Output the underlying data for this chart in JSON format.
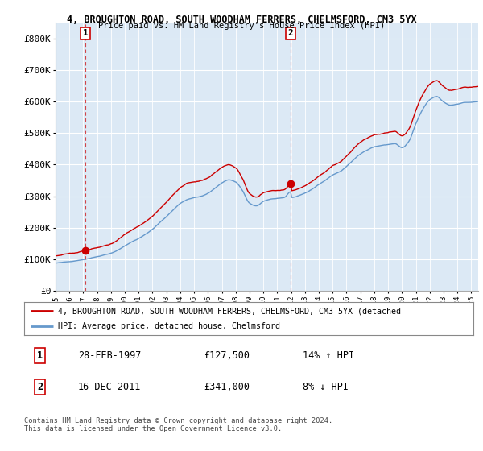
{
  "title1": "4, BROUGHTON ROAD, SOUTH WOODHAM FERRERS, CHELMSFORD, CM3 5YX",
  "title2": "Price paid vs. HM Land Registry's House Price Index (HPI)",
  "legend_line1": "4, BROUGHTON ROAD, SOUTH WOODHAM FERRERS, CHELMSFORD, CM3 5YX (detached",
  "legend_line2": "HPI: Average price, detached house, Chelmsford",
  "annotation1": {
    "label": "1",
    "date": "28-FEB-1997",
    "price": "£127,500",
    "hpi": "14% ↑ HPI"
  },
  "annotation2": {
    "label": "2",
    "date": "16-DEC-2011",
    "price": "£341,000",
    "hpi": "8% ↓ HPI"
  },
  "copyright": "Contains HM Land Registry data © Crown copyright and database right 2024.\nThis data is licensed under the Open Government Licence v3.0.",
  "hpi_color": "#6699cc",
  "price_color": "#cc0000",
  "marker_color": "#cc0000",
  "dashed_color": "#cc0000",
  "background_plot": "#dce9f5",
  "background_fig": "#ffffff",
  "ylim": [
    0,
    850000
  ],
  "yticks": [
    0,
    100000,
    200000,
    300000,
    400000,
    500000,
    600000,
    700000,
    800000
  ],
  "ytick_labels": [
    "£0",
    "£100K",
    "£200K",
    "£300K",
    "£400K",
    "£500K",
    "£600K",
    "£700K",
    "£800K"
  ],
  "sale1_x": 1997.15,
  "sale1_y": 127500,
  "sale2_x": 2011.96,
  "sale2_y": 341000,
  "xmin": 1995.0,
  "xmax": 2025.5,
  "xtick_years": [
    1995,
    1996,
    1997,
    1998,
    1999,
    2000,
    2001,
    2002,
    2003,
    2004,
    2005,
    2006,
    2007,
    2008,
    2009,
    2010,
    2011,
    2012,
    2013,
    2014,
    2015,
    2016,
    2017,
    2018,
    2019,
    2020,
    2021,
    2022,
    2023,
    2024,
    2025
  ]
}
